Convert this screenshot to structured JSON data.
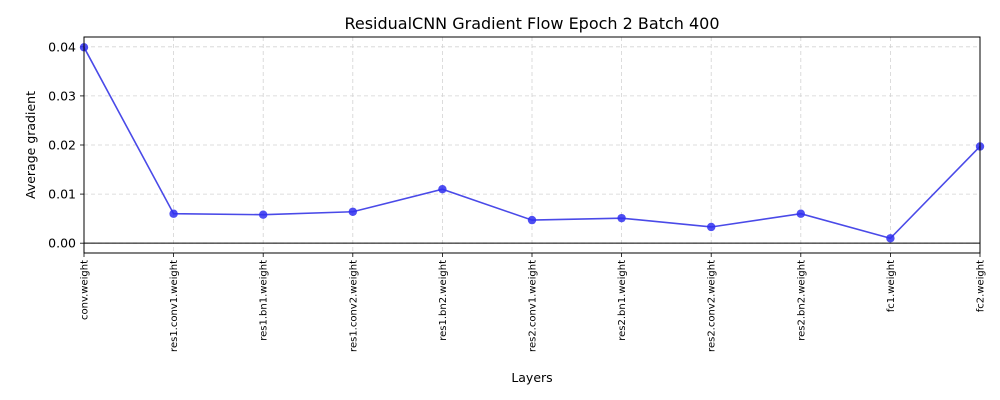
{
  "chart_data": {
    "type": "line",
    "title": "ResidualCNN Gradient Flow Epoch 2 Batch 400",
    "xlabel": "Layers",
    "ylabel": "Average gradient",
    "categories": [
      "conv.weight",
      "res1.conv1.weight",
      "res1.bn1.weight",
      "res1.conv2.weight",
      "res1.bn2.weight",
      "res2.conv1.weight",
      "res2.bn1.weight",
      "res2.conv2.weight",
      "res2.bn2.weight",
      "fc1.weight",
      "fc2.weight"
    ],
    "series": [
      {
        "values": [
          0.0399,
          0.006,
          0.0058,
          0.0064,
          0.011,
          0.0047,
          0.0051,
          0.0033,
          0.006,
          0.001,
          0.0197
        ]
      }
    ],
    "ylim": [
      -0.002,
      0.042
    ],
    "yticks": [
      0.0,
      0.01,
      0.02,
      0.03,
      0.04
    ],
    "ytick_labels": [
      "0.00",
      "0.01",
      "0.02",
      "0.03",
      "0.04"
    ],
    "grid": true,
    "zero_line": true,
    "colors": {
      "line": "#4a4ae8",
      "marker": "#2f2ff0",
      "grid": "#d3d3d3"
    }
  }
}
